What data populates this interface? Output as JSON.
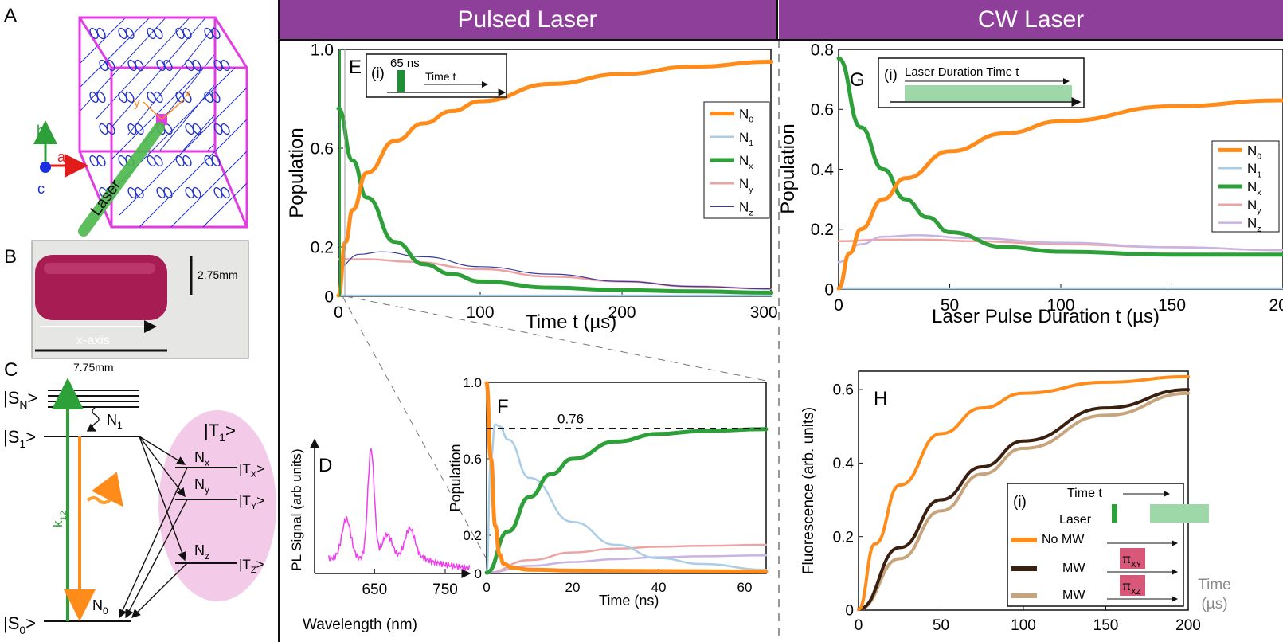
{
  "headers": {
    "pulsed": "Pulsed Laser",
    "cw": "CW Laser"
  },
  "panel_letters": {
    "A": "A",
    "B": "B",
    "C": "C",
    "D": "D",
    "E": "E",
    "F": "F",
    "G": "G",
    "H": "H"
  },
  "panel_a": {
    "axis_a": "a",
    "axis_b": "b",
    "axis_c": "c",
    "laser": "Laser",
    "y": "y",
    "x": "x"
  },
  "panel_b": {
    "height": "2.75mm",
    "length": "7.75mm",
    "axis": "x-axis"
  },
  "panel_c": {
    "SN": "|S",
    "SN_sub": "N",
    "S1": "|S",
    "S1_sub": "1",
    "S0": "|S",
    "S0_sub": "0",
    "T1": "|T",
    "T1_sub": "1",
    "TX": "|T",
    "TX_sub": "X",
    "TY": "|T",
    "TY_sub": "Y",
    "TZ": "|T",
    "TZ_sub": "Z",
    "N1": "N",
    "N1_sub": "1",
    "N0": "N",
    "N0_sub": "0",
    "Nx": "N",
    "Nx_sub": "x",
    "Ny": "N",
    "Ny_sub": "y",
    "Nz": "N",
    "Nz_sub": "z",
    "k12": "k",
    "k12_sub": "12",
    "ket": ">"
  },
  "colors": {
    "N0": "#ff8c1a",
    "N1": "#a9cde6",
    "Nx": "#2ea03a",
    "Ny": "#eba3a3",
    "Nz_E": "#3a3aa0",
    "Nz_G": "#c9b3e3",
    "purple": "#8e3f9a",
    "mw": "#3a2010",
    "mw2": "#c8a47c",
    "pl": "#ee3cee",
    "pink": "#f3cbe8",
    "pulse": "#9fd8a8",
    "pi": "#d9587a"
  },
  "chart_data": [
    {
      "id": "D",
      "type": "line",
      "xlabel": "Wavelength (nm)",
      "ylabel": "PL Signal (arb units)",
      "xticks": [
        "650",
        "750"
      ],
      "peaks_nm": [
        610,
        645,
        700
      ]
    },
    {
      "id": "E",
      "type": "line",
      "xlabel": "Time t (µs)",
      "ylabel": "Population",
      "xlim": [
        0,
        305
      ],
      "ylim": [
        0,
        1.0
      ],
      "xticks": [
        "0",
        "100",
        "200",
        "300"
      ],
      "yticks": [
        "0",
        "0.2",
        "0.6",
        "1.0"
      ],
      "series": [
        {
          "name": "N",
          "sub": "0",
          "x": [
            0,
            5,
            10,
            20,
            40,
            60,
            80,
            100,
            150,
            200,
            250,
            305
          ],
          "y": [
            0,
            0.22,
            0.35,
            0.5,
            0.63,
            0.7,
            0.75,
            0.79,
            0.86,
            0.9,
            0.93,
            0.95
          ]
        },
        {
          "name": "N",
          "sub": "1",
          "x": [
            0,
            305
          ],
          "y": [
            0,
            0
          ]
        },
        {
          "name": "N",
          "sub": "x",
          "x": [
            0,
            10,
            20,
            40,
            60,
            80,
            100,
            150,
            200,
            250,
            305
          ],
          "y": [
            0.76,
            0.55,
            0.4,
            0.22,
            0.13,
            0.09,
            0.06,
            0.035,
            0.025,
            0.02,
            0.015
          ]
        },
        {
          "name": "N",
          "sub": "y",
          "x": [
            0,
            20,
            50,
            100,
            150,
            200,
            250,
            305
          ],
          "y": [
            0.15,
            0.15,
            0.14,
            0.11,
            0.08,
            0.06,
            0.04,
            0.03
          ]
        },
        {
          "name": "N",
          "sub": "z",
          "x": [
            0,
            15,
            30,
            60,
            100,
            150,
            200,
            250,
            305
          ],
          "y": [
            0.12,
            0.17,
            0.18,
            0.16,
            0.12,
            0.09,
            0.06,
            0.04,
            0.03
          ]
        }
      ],
      "inset": {
        "label": "(i)",
        "pulse": "65 ns",
        "axis": "Time t"
      }
    },
    {
      "id": "F",
      "type": "line",
      "xlabel": "Time (ns)",
      "ylabel": "Population",
      "xlim": [
        0,
        65
      ],
      "ylim": [
        0,
        1.0
      ],
      "xticks": [
        "0",
        "20",
        "40",
        "60"
      ],
      "yticks": [
        "0",
        "0.2",
        "0.6",
        "1.0"
      ],
      "annotation": "0.76",
      "series": [
        {
          "name": "N",
          "sub": "0",
          "x": [
            0,
            1,
            2,
            3,
            4,
            6,
            10,
            20,
            65
          ],
          "y": [
            1.0,
            0.6,
            0.25,
            0.1,
            0.05,
            0.03,
            0.02,
            0.015,
            0.01
          ]
        },
        {
          "name": "N",
          "sub": "1",
          "x": [
            0,
            1,
            2,
            3,
            5,
            10,
            20,
            30,
            40,
            50,
            65
          ],
          "y": [
            0,
            0.6,
            0.78,
            0.77,
            0.7,
            0.5,
            0.27,
            0.15,
            0.08,
            0.05,
            0.02
          ]
        },
        {
          "name": "N",
          "sub": "x",
          "x": [
            0,
            5,
            10,
            15,
            20,
            30,
            40,
            50,
            65
          ],
          "y": [
            0,
            0.22,
            0.4,
            0.52,
            0.6,
            0.69,
            0.73,
            0.745,
            0.755
          ]
        },
        {
          "name": "N",
          "sub": "y",
          "x": [
            0,
            10,
            20,
            30,
            40,
            50,
            65
          ],
          "y": [
            0,
            0.07,
            0.11,
            0.13,
            0.14,
            0.145,
            0.15
          ]
        },
        {
          "name": "N",
          "sub": "z",
          "x": [
            0,
            10,
            20,
            30,
            40,
            50,
            65
          ],
          "y": [
            0,
            0.04,
            0.06,
            0.075,
            0.085,
            0.09,
            0.095
          ]
        }
      ]
    },
    {
      "id": "G",
      "type": "line",
      "xlabel": "Laser Pulse Duration t (µs)",
      "ylabel": "Population",
      "xlim": [
        0,
        200
      ],
      "ylim": [
        0,
        0.8
      ],
      "xticks": [
        "0",
        "50",
        "100",
        "150",
        "200"
      ],
      "yticks": [
        "0",
        "0.2",
        "0.4",
        "0.6",
        "0.8"
      ],
      "series": [
        {
          "name": "N",
          "sub": "0",
          "x": [
            0,
            5,
            10,
            20,
            30,
            50,
            75,
            100,
            150,
            200
          ],
          "y": [
            0,
            0.12,
            0.2,
            0.3,
            0.37,
            0.46,
            0.52,
            0.56,
            0.61,
            0.63
          ]
        },
        {
          "name": "N",
          "sub": "1",
          "x": [
            0,
            200
          ],
          "y": [
            0,
            0
          ]
        },
        {
          "name": "N",
          "sub": "x",
          "x": [
            0,
            10,
            20,
            30,
            40,
            50,
            75,
            100,
            150,
            200
          ],
          "y": [
            0.77,
            0.54,
            0.4,
            0.3,
            0.24,
            0.19,
            0.14,
            0.125,
            0.115,
            0.115
          ]
        },
        {
          "name": "N",
          "sub": "y",
          "x": [
            0,
            20,
            40,
            60,
            100,
            150,
            200
          ],
          "y": [
            0.16,
            0.165,
            0.165,
            0.16,
            0.15,
            0.14,
            0.13
          ]
        },
        {
          "name": "N",
          "sub": "z",
          "x": [
            0,
            10,
            20,
            35,
            60,
            100,
            150,
            200
          ],
          "y": [
            0.09,
            0.15,
            0.175,
            0.18,
            0.17,
            0.155,
            0.14,
            0.13
          ]
        }
      ],
      "inset": {
        "label": "(i)",
        "text": "Laser Duration Time t"
      }
    },
    {
      "id": "H",
      "type": "line",
      "xlabel": "",
      "ylabel": "Fluorescence (arb. units)",
      "xlim": [
        0,
        200
      ],
      "ylim": [
        0,
        0.65
      ],
      "xticks": [
        "0",
        "50",
        "100",
        "150",
        "200"
      ],
      "yticks": [
        "0",
        "0.2",
        "0.4",
        "0.6"
      ],
      "series": [
        {
          "name": "No MW",
          "x": [
            0,
            10,
            25,
            50,
            75,
            100,
            150,
            200
          ],
          "y": [
            0,
            0.18,
            0.34,
            0.48,
            0.55,
            0.59,
            0.62,
            0.635
          ]
        },
        {
          "name": "MW",
          "x": [
            0,
            25,
            50,
            75,
            100,
            150,
            200
          ],
          "y": [
            0,
            0.17,
            0.3,
            0.39,
            0.46,
            0.55,
            0.6
          ]
        },
        {
          "name": "MW",
          "x": [
            0,
            25,
            50,
            75,
            100,
            150,
            200
          ],
          "y": [
            0,
            0.14,
            0.27,
            0.37,
            0.44,
            0.53,
            0.59
          ]
        }
      ],
      "inset": {
        "label": "(i)",
        "time": "Time t",
        "laser": "Laser",
        "nomw": "No MW",
        "mw1": "MW",
        "mw2": "MW",
        "pi": "π",
        "pi1_sub": "XY",
        "pi2_sub": "XZ"
      },
      "outside": {
        "time": "Time",
        "unit": "(µs)"
      }
    }
  ]
}
